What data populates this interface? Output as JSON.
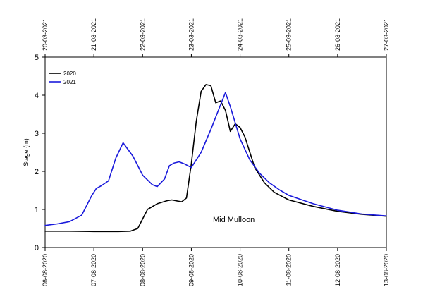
{
  "chart_data": {
    "type": "line",
    "ylabel": "Stage (m)",
    "ylim": [
      0,
      5
    ],
    "yticks": [
      "0",
      "1",
      "2",
      "3",
      "4",
      "5"
    ],
    "xlim": [
      0,
      7
    ],
    "bottom_ticks": [
      "06-08-2020",
      "07-08-2020",
      "08-08-2020",
      "09-08-2020",
      "10-08-2020",
      "11-08-2020",
      "12-08-2020",
      "13-08-2020"
    ],
    "top_ticks": [
      "20-03-2021",
      "21-03-2021",
      "22-03-2021",
      "23-03-2021",
      "24-03-2021",
      "25-03-2021",
      "26-03-2021",
      "27-03-2021"
    ],
    "annotation": "Mid Mulloon",
    "legend_position": "top-left",
    "grid": false,
    "series": [
      {
        "name": "2020",
        "color": "#000000",
        "x": [
          0,
          0.5,
          1.0,
          1.5,
          1.75,
          1.9,
          2.0,
          2.1,
          2.3,
          2.5,
          2.6,
          2.8,
          2.9,
          3.0,
          3.1,
          3.2,
          3.3,
          3.4,
          3.5,
          3.6,
          3.7,
          3.8,
          3.9,
          4.0,
          4.1,
          4.2,
          4.3,
          4.4,
          4.5,
          4.7,
          5.0,
          5.5,
          6.0,
          6.5,
          7.0
        ],
        "values": [
          0.43,
          0.43,
          0.42,
          0.42,
          0.43,
          0.5,
          0.75,
          1.0,
          1.15,
          1.23,
          1.25,
          1.2,
          1.3,
          2.2,
          3.3,
          4.1,
          4.28,
          4.25,
          3.8,
          3.85,
          3.6,
          3.05,
          3.25,
          3.15,
          2.9,
          2.5,
          2.1,
          1.9,
          1.7,
          1.45,
          1.25,
          1.08,
          0.95,
          0.87,
          0.82
        ]
      },
      {
        "name": "2021",
        "color": "#1a1adb",
        "x": [
          0,
          0.25,
          0.5,
          0.75,
          0.85,
          0.95,
          1.05,
          1.15,
          1.3,
          1.45,
          1.6,
          1.8,
          2.0,
          2.2,
          2.3,
          2.45,
          2.55,
          2.65,
          2.75,
          2.85,
          3.0,
          3.2,
          3.4,
          3.6,
          3.7,
          3.8,
          4.0,
          4.2,
          4.4,
          4.6,
          4.8,
          5.0,
          5.5,
          6.0,
          6.5,
          7.0
        ],
        "values": [
          0.58,
          0.62,
          0.68,
          0.85,
          1.1,
          1.35,
          1.55,
          1.62,
          1.75,
          2.35,
          2.75,
          2.4,
          1.9,
          1.65,
          1.6,
          1.8,
          2.15,
          2.22,
          2.25,
          2.2,
          2.1,
          2.5,
          3.1,
          3.75,
          4.07,
          3.7,
          2.85,
          2.3,
          1.95,
          1.7,
          1.52,
          1.37,
          1.15,
          0.98,
          0.88,
          0.83
        ]
      }
    ]
  }
}
